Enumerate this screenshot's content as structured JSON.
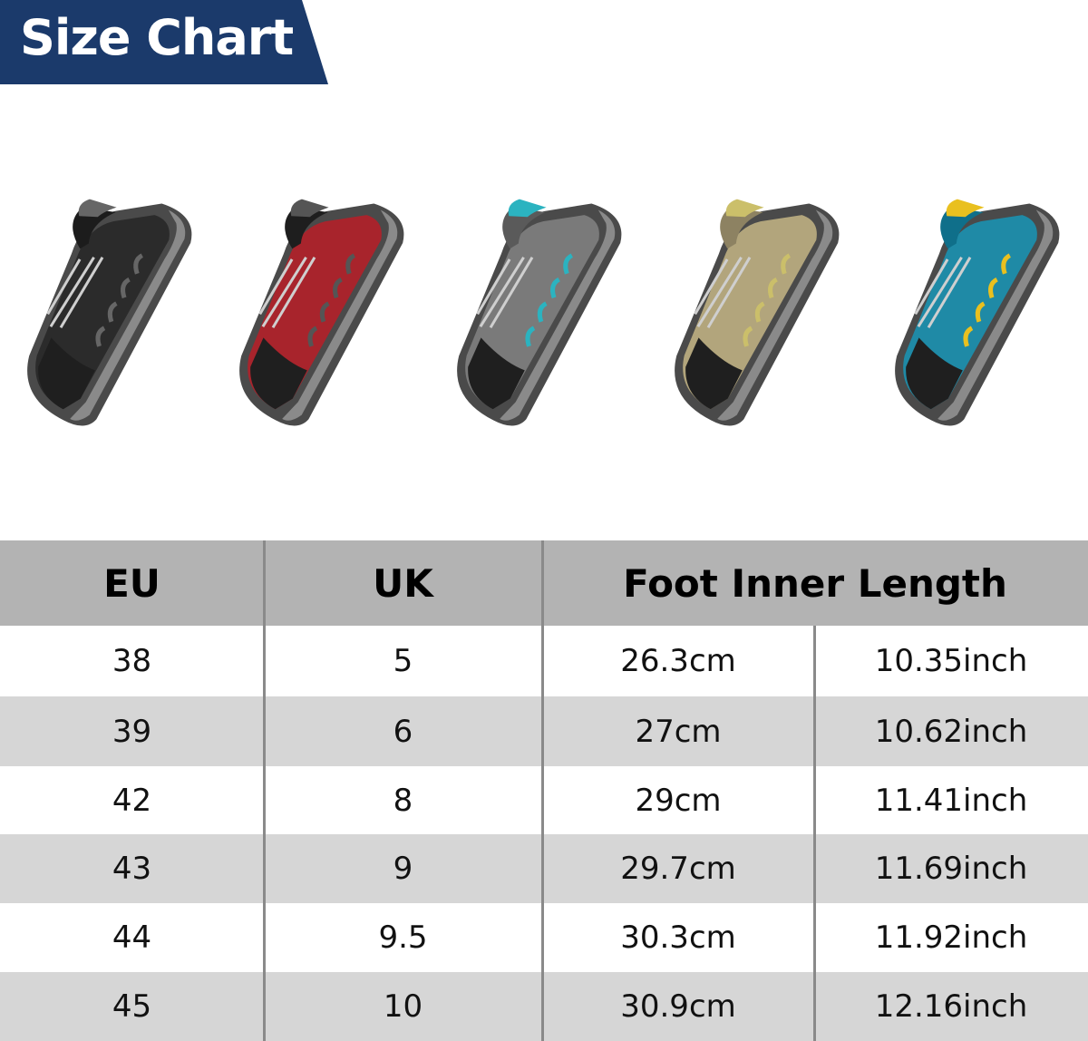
{
  "banner": {
    "title": "Size Chart",
    "color": "#1b3a6b"
  },
  "shoes": [
    {
      "name": "black",
      "body": "#2b2b2b",
      "accent": "#1c1c1c",
      "trim": "#666666"
    },
    {
      "name": "red",
      "body": "#a8242c",
      "accent": "#1e1e1e",
      "trim": "#555555"
    },
    {
      "name": "grey",
      "body": "#7a7a7a",
      "accent": "#5a5a5a",
      "trim": "#2bb3c0"
    },
    {
      "name": "khaki",
      "body": "#b2a57c",
      "accent": "#8d8262",
      "trim": "#cbbf6a"
    },
    {
      "name": "blue",
      "body": "#1f8aa6",
      "accent": "#0f6f8a",
      "trim": "#e9c01f"
    }
  ],
  "table": {
    "headers": {
      "eu": "EU",
      "uk": "UK",
      "length": "Foot Inner Length"
    },
    "colors": {
      "header": "#b3b3b3",
      "alt_row": "#d6d6d6",
      "row": "#ffffff"
    },
    "rows": [
      {
        "eu": "38",
        "uk": "5",
        "cm": "26.3cm",
        "inch": "10.35inch"
      },
      {
        "eu": "39",
        "uk": "6",
        "cm": "27cm",
        "inch": "10.62inch"
      },
      {
        "eu": "42",
        "uk": "8",
        "cm": "29cm",
        "inch": "11.41inch"
      },
      {
        "eu": "43",
        "uk": "9",
        "cm": "29.7cm",
        "inch": "11.69inch"
      },
      {
        "eu": "44",
        "uk": "9.5",
        "cm": "30.3cm",
        "inch": "11.92inch"
      },
      {
        "eu": "45",
        "uk": "10",
        "cm": "30.9cm",
        "inch": "12.16inch"
      }
    ]
  }
}
